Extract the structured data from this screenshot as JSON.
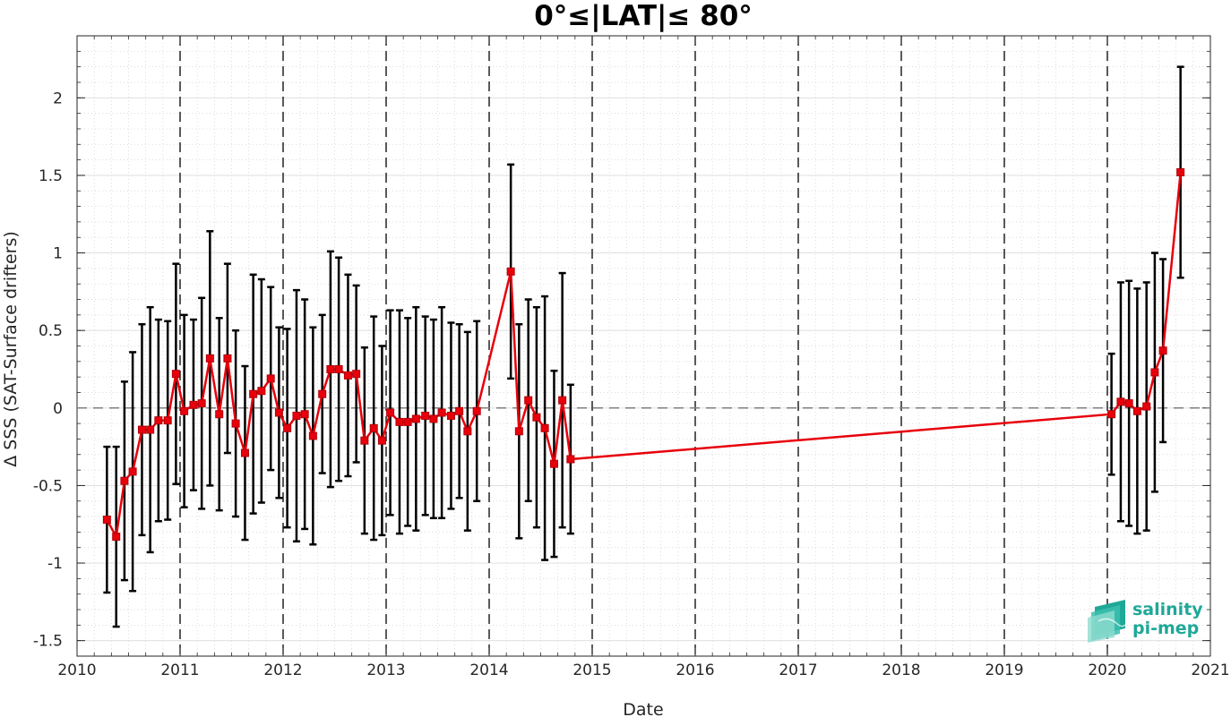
{
  "chart_data": {
    "type": "line",
    "title": "0°≤|LAT|≤ 80°",
    "xlabel": "Date",
    "ylabel": "Δ SSS (SAT-Surface drifters)",
    "xlim": [
      2010,
      2021
    ],
    "ylim": [
      -1.6,
      2.4
    ],
    "xticks": [
      "2010",
      "2011",
      "2012",
      "2013",
      "2014",
      "2015",
      "2016",
      "2017",
      "2018",
      "2019",
      "2020",
      "2021"
    ],
    "yticks": [
      "-1.5",
      "-1",
      "-0.5",
      "0",
      "0.5",
      "1",
      "1.5",
      "2"
    ],
    "ytick_values": [
      -1.5,
      -1,
      -0.5,
      0,
      0.5,
      1,
      1.5,
      2
    ],
    "grid": "minor dotted",
    "year_lines": "dashed",
    "zero_line": "dashed gray",
    "series": [
      {
        "color": "#e8000b",
        "x": [
          2010.29,
          2010.38,
          2010.46,
          2010.54,
          2010.63,
          2010.71,
          2010.79,
          2010.88,
          2010.96,
          2011.04,
          2011.13,
          2011.21,
          2011.29,
          2011.38,
          2011.46,
          2011.54,
          2011.63,
          2011.71,
          2011.79,
          2011.88,
          2011.96,
          2012.04,
          2012.13,
          2012.21,
          2012.29,
          2012.38,
          2012.46,
          2012.54,
          2012.63,
          2012.71,
          2012.79,
          2012.88,
          2012.96,
          2013.04,
          2013.13,
          2013.21,
          2013.29,
          2013.38,
          2013.46,
          2013.54,
          2013.63,
          2013.71,
          2013.79,
          2013.88,
          2014.21,
          2014.29,
          2014.38,
          2014.46,
          2014.54,
          2014.63,
          2014.71,
          2014.79,
          2020.04,
          2020.13,
          2020.21,
          2020.29,
          2020.38,
          2020.46,
          2020.54,
          2020.71
        ],
        "y": [
          -0.72,
          -0.83,
          -0.47,
          -0.41,
          -0.14,
          -0.14,
          -0.08,
          -0.08,
          0.22,
          -0.02,
          0.02,
          0.03,
          0.32,
          -0.04,
          0.32,
          -0.1,
          -0.29,
          0.09,
          0.11,
          0.19,
          -0.03,
          -0.13,
          -0.05,
          -0.04,
          -0.18,
          0.09,
          0.25,
          0.25,
          0.21,
          0.22,
          -0.21,
          -0.13,
          -0.21,
          -0.03,
          -0.09,
          -0.09,
          -0.07,
          -0.05,
          -0.07,
          -0.03,
          -0.05,
          -0.02,
          -0.15,
          -0.02,
          0.88,
          -0.15,
          0.05,
          -0.06,
          -0.13,
          -0.36,
          0.05,
          -0.33,
          -0.04,
          0.04,
          0.03,
          -0.02,
          0.01,
          0.23,
          0.37,
          1.52
        ],
        "err": [
          0.47,
          0.58,
          0.64,
          0.77,
          0.68,
          0.79,
          0.65,
          0.64,
          0.71,
          0.62,
          0.55,
          0.68,
          0.82,
          0.62,
          0.61,
          0.6,
          0.56,
          0.77,
          0.72,
          0.59,
          0.55,
          0.64,
          0.81,
          0.74,
          0.7,
          0.51,
          0.76,
          0.72,
          0.65,
          0.57,
          0.6,
          0.72,
          0.61,
          0.66,
          0.72,
          0.67,
          0.72,
          0.64,
          0.64,
          0.68,
          0.6,
          0.56,
          0.64,
          0.58,
          0.69,
          0.69,
          0.65,
          0.71,
          0.85,
          0.6,
          0.82,
          0.48,
          0.39,
          0.77,
          0.79,
          0.79,
          0.8,
          0.77,
          0.59,
          0.68
        ]
      }
    ]
  },
  "logo": {
    "line1": "salinity",
    "line2": "pi-mep"
  }
}
